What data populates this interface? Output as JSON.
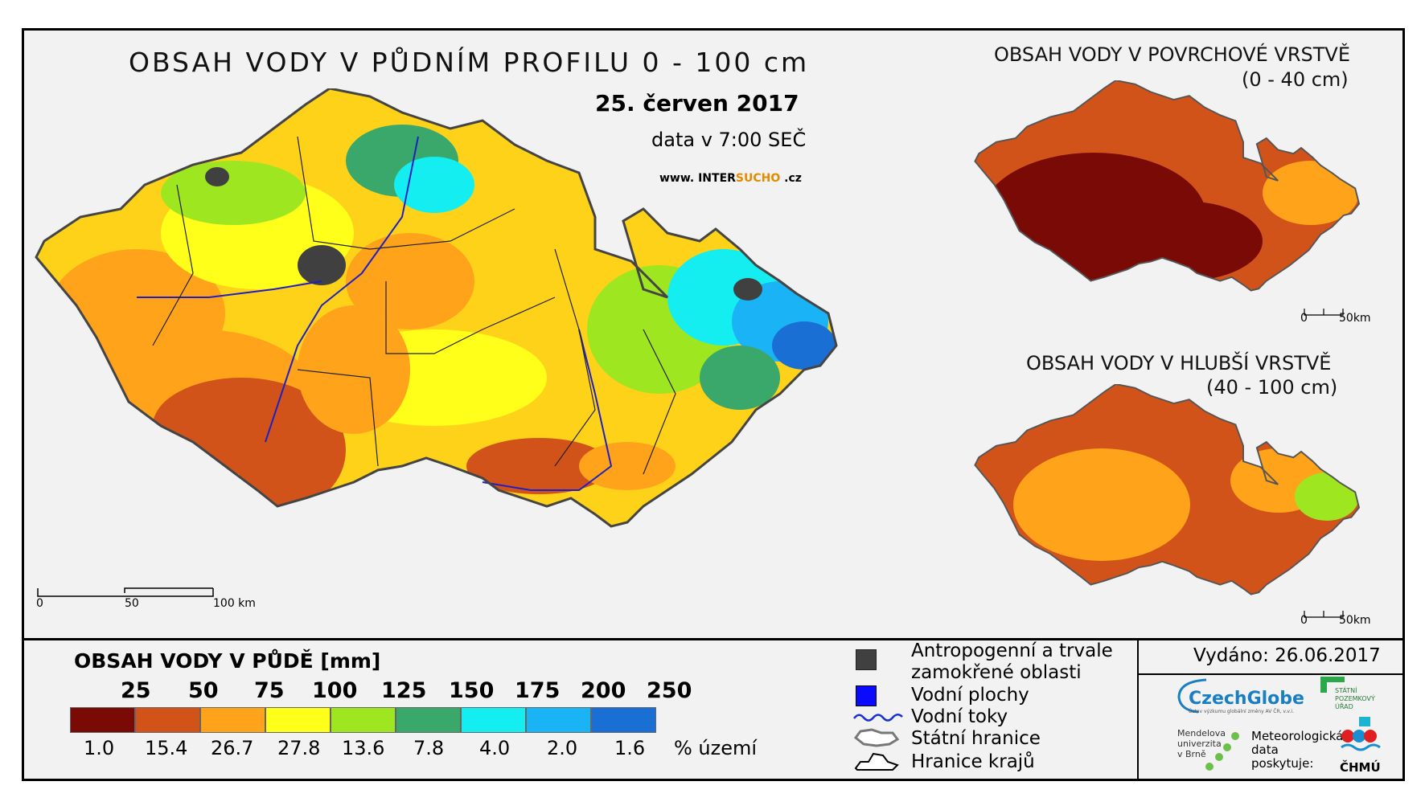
{
  "title": "OBSAH VODY V PŮDNÍM PROFILU 0 - 100 cm",
  "date": "25. červen 2017",
  "data_time": "data v 7:00 SEČ",
  "url_prefix": "www. INTER",
  "url_brand": "SUCHO",
  "url_suffix": " .cz",
  "inset_top": {
    "title": "OBSAH VODY V POVRCHOVÉ VRSTVĚ",
    "depth": "(0 - 40 cm)"
  },
  "inset_bottom": {
    "title": "OBSAH VODY V HLUBŠÍ VRSTVĚ",
    "depth": "(40 - 100 cm)"
  },
  "scalebar_main": {
    "t0": "0",
    "t1": "50",
    "t2": "100 km"
  },
  "scalebar_inset": {
    "t0": "0",
    "t1": "50km"
  },
  "legend": {
    "title": "OBSAH VODY V PŮDĚ [mm]",
    "thresholds": [
      "25",
      "50",
      "75",
      "100",
      "125",
      "150",
      "175",
      "200",
      "250"
    ],
    "colors": [
      "#7a0a05",
      "#d2531a",
      "#ffa31a",
      "#ffff1a",
      "#9ee61f",
      "#3aa86a",
      "#14eef0",
      "#1ab3f5",
      "#1a6fd4"
    ],
    "percentages": [
      "1.0",
      "15.4",
      "26.7",
      "27.8",
      "13.6",
      "7.8",
      "4.0",
      "2.0",
      "1.6"
    ],
    "percent_label": "% území"
  },
  "symbols": {
    "anthro_line1": "Antropogenní a trvale",
    "anthro_line2": "zamokřené oblasti",
    "water_bodies": "Vodní plochy",
    "rivers": "Vodní toky",
    "state_border": "Státní hranice",
    "region_border": "Hranice krajů",
    "anthro_color": "#404040",
    "water_color": "#0a0aff",
    "river_color": "#1a2fd6"
  },
  "issued": "Vydáno: 26.06.2017",
  "logos": {
    "czechglobe": "CzechGlobe",
    "czechglobe_sub": "Ústav výzkumu globální změny AV ČR, v.v.i.",
    "mendel": [
      "Mendelova",
      "univerzita",
      "v Brně"
    ],
    "spu": [
      "STÁTNÍ",
      "POZEMKOVÝ",
      "ÚŘAD"
    ],
    "meteo": [
      "Meteorologická",
      "data",
      "poskytuje:"
    ],
    "chmu": "ČHMÚ"
  }
}
